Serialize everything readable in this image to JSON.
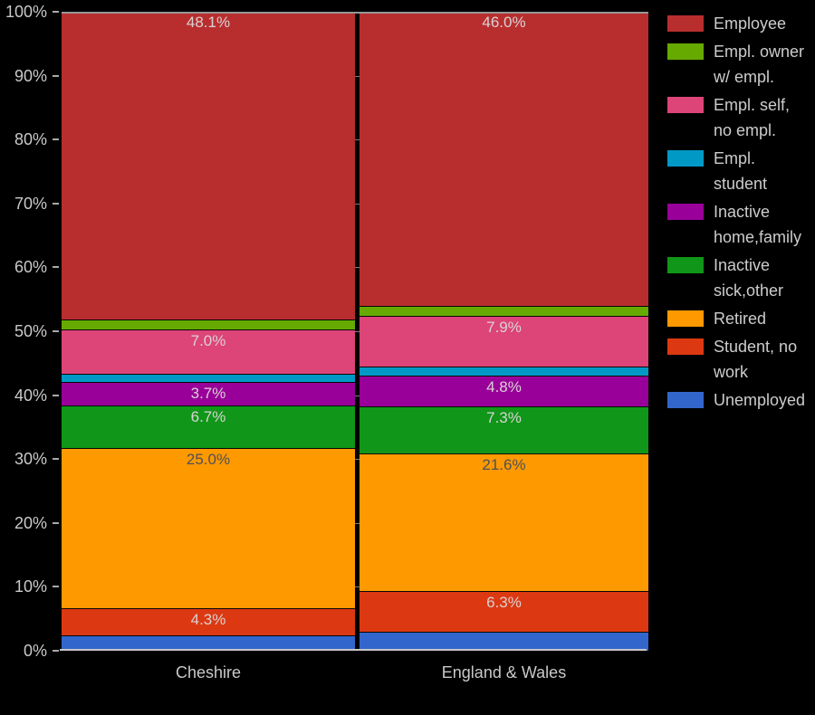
{
  "chart_data": {
    "type": "bar",
    "subtype": "100-percent-stacked-column",
    "title": "",
    "xlabel": "",
    "ylabel": "",
    "categories": [
      "Cheshire",
      "England & Wales"
    ],
    "series": [
      {
        "name": "Employee",
        "color": "#b82e2e",
        "values": [
          48.1,
          46.0
        ],
        "data_labels": [
          "48.1%",
          "46.0%"
        ],
        "dark_label": false
      },
      {
        "name": "Empl. owner w/ empl.",
        "color": "#66aa00",
        "values": [
          1.6,
          1.6
        ],
        "data_labels": [
          "",
          ""
        ],
        "dark_label": false
      },
      {
        "name": "Empl. self, no empl.",
        "color": "#dd4477",
        "values": [
          7.0,
          7.9
        ],
        "data_labels": [
          "7.0%",
          "7.9%"
        ],
        "dark_label": false
      },
      {
        "name": "Empl. student",
        "color": "#0099c6",
        "values": [
          1.2,
          1.5
        ],
        "data_labels": [
          "",
          ""
        ],
        "dark_label": false
      },
      {
        "name": "Inactive home,family",
        "color": "#990099",
        "values": [
          3.7,
          4.8
        ],
        "data_labels": [
          "3.7%",
          "4.8%"
        ],
        "dark_label": false
      },
      {
        "name": "Inactive sick,other",
        "color": "#109618",
        "values": [
          6.7,
          7.3
        ],
        "data_labels": [
          "6.7%",
          "7.3%"
        ],
        "dark_label": false
      },
      {
        "name": "Retired",
        "color": "#ff9900",
        "values": [
          25.0,
          21.6
        ],
        "data_labels": [
          "25.0%",
          "21.6%"
        ],
        "dark_label": true
      },
      {
        "name": "Student, no work",
        "color": "#dc3912",
        "values": [
          4.3,
          6.3
        ],
        "data_labels": [
          "4.3%",
          "6.3%"
        ],
        "dark_label": false
      },
      {
        "name": "Unemployed",
        "color": "#3366cc",
        "values": [
          2.4,
          3.0
        ],
        "data_labels": [
          "",
          ""
        ],
        "dark_label": false
      }
    ],
    "ylim": [
      0,
      100
    ],
    "y_ticks": [
      "0%",
      "10%",
      "20%",
      "30%",
      "40%",
      "50%",
      "60%",
      "70%",
      "80%",
      "90%",
      "100%"
    ],
    "grid": true,
    "legend_position": "right"
  },
  "style": {
    "background": "#000000",
    "axis_text_color": "#c9c9c9",
    "legend_text_color": "#cccccc",
    "gridline_color": "#7d7d7d",
    "baseline_color": "#c8c8c8",
    "bar_label_light": "#d9d3d6",
    "bar_label_dark": "#4e5156"
  }
}
